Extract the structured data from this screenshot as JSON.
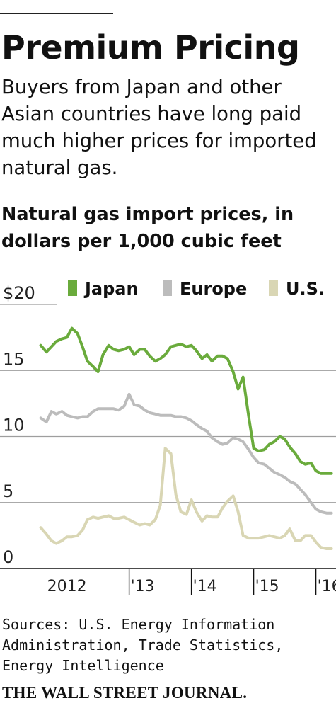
{
  "header": {
    "watermark": "",
    "title": "Premium Pricing",
    "subtitle": "Buyers from Japan and other Asian countries have long paid much higher prices for imported natural gas."
  },
  "chart_data": {
    "type": "line",
    "title": "Natural gas import prices, in dollars per 1,000 cubic feet",
    "xlabel": "",
    "ylabel": "",
    "ylim": [
      0,
      20
    ],
    "grid": true,
    "legend_position": "top",
    "yticks": [
      {
        "value": 20,
        "label": "$20"
      },
      {
        "value": 15,
        "label": "15"
      },
      {
        "value": 10,
        "label": "10"
      },
      {
        "value": 5,
        "label": "5"
      },
      {
        "value": 0,
        "label": "0"
      }
    ],
    "xlim": [
      2011.55,
      2016.3
    ],
    "xticks": [
      {
        "value": 2012.0,
        "label": "2012",
        "marker": false
      },
      {
        "value": 2013.0,
        "label": "'13",
        "marker": true
      },
      {
        "value": 2014.0,
        "label": "'14",
        "marker": true
      },
      {
        "value": 2015.0,
        "label": "'15",
        "marker": true
      },
      {
        "value": 2016.0,
        "label": "'16",
        "marker": true
      }
    ],
    "series": [
      {
        "name": "Japan",
        "color": "#6aab3c",
        "x": [
          2011.58,
          2011.67,
          2011.75,
          2011.83,
          2011.92,
          2012.0,
          2012.08,
          2012.17,
          2012.25,
          2012.33,
          2012.42,
          2012.5,
          2012.58,
          2012.67,
          2012.75,
          2012.83,
          2012.92,
          2013.0,
          2013.08,
          2013.17,
          2013.25,
          2013.33,
          2013.42,
          2013.5,
          2013.58,
          2013.67,
          2013.75,
          2013.83,
          2013.92,
          2014.0,
          2014.08,
          2014.17,
          2014.25,
          2014.33,
          2014.42,
          2014.5,
          2014.58,
          2014.67,
          2014.75,
          2014.83,
          2014.92,
          2015.0,
          2015.08,
          2015.17,
          2015.25,
          2015.33,
          2015.42,
          2015.5,
          2015.58,
          2015.67,
          2015.75,
          2015.83,
          2015.92,
          2016.0,
          2016.08,
          2016.17,
          2016.25
        ],
        "values": [
          16.9,
          16.4,
          16.8,
          17.2,
          17.4,
          17.5,
          18.2,
          17.8,
          16.8,
          15.7,
          15.3,
          14.9,
          16.2,
          16.9,
          16.6,
          16.5,
          16.6,
          16.8,
          16.2,
          16.6,
          16.6,
          16.1,
          15.7,
          15.9,
          16.2,
          16.8,
          16.9,
          17.0,
          16.8,
          16.9,
          16.5,
          15.9,
          16.2,
          15.7,
          16.1,
          16.1,
          15.9,
          14.9,
          13.6,
          14.5,
          11.5,
          9.1,
          8.9,
          9.0,
          9.4,
          9.6,
          10.0,
          9.8,
          9.2,
          8.7,
          8.1,
          7.9,
          8.0,
          7.4,
          7.2,
          7.2,
          7.2
        ]
      },
      {
        "name": "Europe",
        "color": "#bcbcbc",
        "x": [
          2011.58,
          2011.67,
          2011.75,
          2011.83,
          2011.92,
          2012.0,
          2012.08,
          2012.17,
          2012.25,
          2012.33,
          2012.42,
          2012.5,
          2012.58,
          2012.67,
          2012.75,
          2012.83,
          2012.92,
          2013.0,
          2013.08,
          2013.17,
          2013.25,
          2013.33,
          2013.42,
          2013.5,
          2013.58,
          2013.67,
          2013.75,
          2013.83,
          2013.92,
          2014.0,
          2014.08,
          2014.17,
          2014.25,
          2014.33,
          2014.42,
          2014.5,
          2014.58,
          2014.67,
          2014.75,
          2014.83,
          2014.92,
          2015.0,
          2015.08,
          2015.17,
          2015.25,
          2015.33,
          2015.42,
          2015.5,
          2015.58,
          2015.67,
          2015.75,
          2015.83,
          2015.92,
          2016.0,
          2016.08,
          2016.17,
          2016.25
        ],
        "values": [
          11.4,
          11.1,
          11.9,
          11.7,
          11.9,
          11.6,
          11.5,
          11.4,
          11.5,
          11.5,
          11.9,
          12.1,
          12.1,
          12.1,
          12.1,
          12.0,
          12.3,
          13.2,
          12.4,
          12.3,
          12.0,
          11.8,
          11.7,
          11.6,
          11.6,
          11.6,
          11.5,
          11.5,
          11.4,
          11.2,
          10.9,
          10.6,
          10.4,
          9.9,
          9.6,
          9.4,
          9.5,
          9.9,
          9.8,
          9.6,
          9.0,
          8.4,
          8.0,
          7.9,
          7.6,
          7.3,
          7.1,
          6.9,
          6.6,
          6.4,
          6.0,
          5.6,
          5.0,
          4.5,
          4.3,
          4.2,
          4.2
        ]
      },
      {
        "name": "U.S.",
        "color": "#d9d6b4",
        "x": [
          2011.58,
          2011.67,
          2011.75,
          2011.83,
          2011.92,
          2012.0,
          2012.08,
          2012.17,
          2012.25,
          2012.33,
          2012.42,
          2012.5,
          2012.58,
          2012.67,
          2012.75,
          2012.83,
          2012.92,
          2013.0,
          2013.08,
          2013.17,
          2013.25,
          2013.33,
          2013.42,
          2013.5,
          2013.58,
          2013.67,
          2013.75,
          2013.83,
          2013.92,
          2014.0,
          2014.08,
          2014.17,
          2014.25,
          2014.33,
          2014.42,
          2014.5,
          2014.58,
          2014.67,
          2014.75,
          2014.83,
          2014.92,
          2015.0,
          2015.08,
          2015.17,
          2015.25,
          2015.33,
          2015.42,
          2015.5,
          2015.58,
          2015.67,
          2015.75,
          2015.83,
          2015.92,
          2016.0,
          2016.08,
          2016.17,
          2016.25
        ],
        "values": [
          3.1,
          2.6,
          2.1,
          1.9,
          2.1,
          2.4,
          2.4,
          2.5,
          2.9,
          3.7,
          3.9,
          3.8,
          3.9,
          4.0,
          3.8,
          3.8,
          3.9,
          3.7,
          3.5,
          3.3,
          3.4,
          3.3,
          3.7,
          4.8,
          9.1,
          8.7,
          5.6,
          4.3,
          4.1,
          5.2,
          4.3,
          3.6,
          4.0,
          3.9,
          3.9,
          4.6,
          5.1,
          5.5,
          4.3,
          2.5,
          2.3,
          2.3,
          2.3,
          2.4,
          2.5,
          2.4,
          2.3,
          2.5,
          3.0,
          2.1,
          2.1,
          2.5,
          2.5,
          2.0,
          1.6,
          1.5,
          1.5
        ]
      }
    ]
  },
  "footer": {
    "sources": "Sources: U.S. Energy Information Administration, Trade Statistics, Energy Intelligence",
    "publisher": "THE WALL STREET JOURNAL.",
    "watermark": ""
  }
}
